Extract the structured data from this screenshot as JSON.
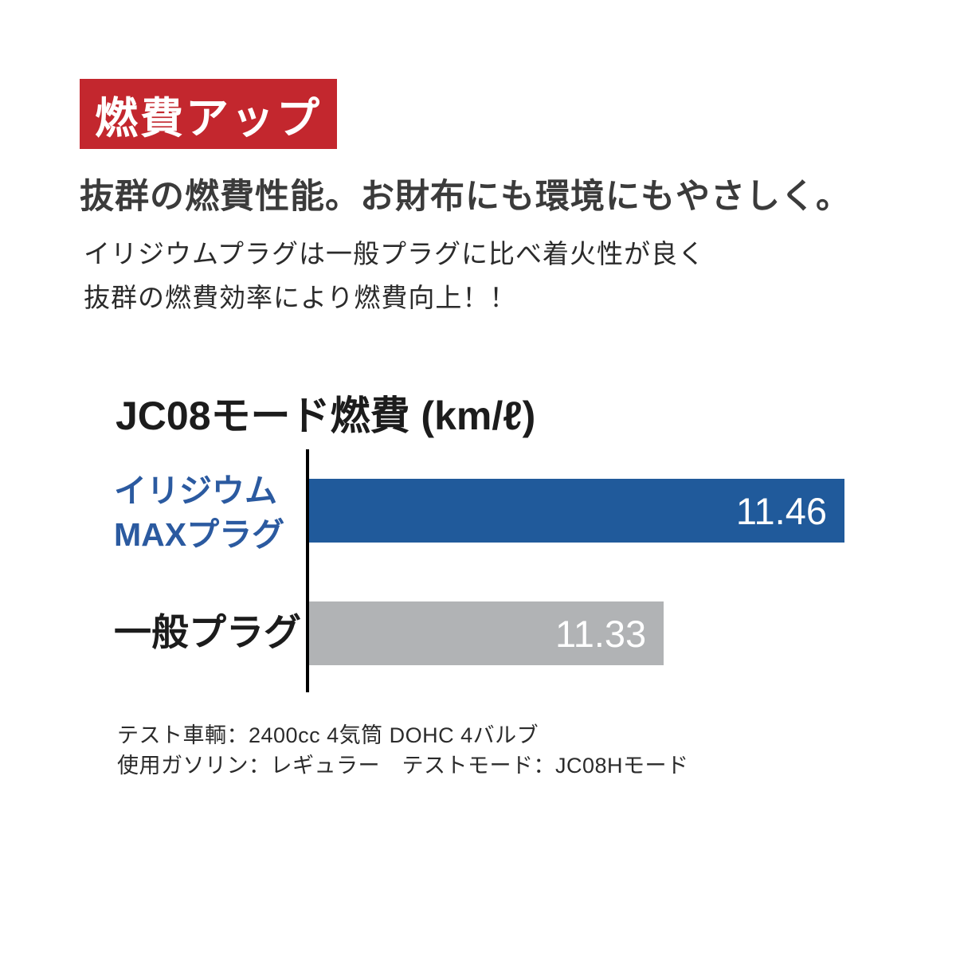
{
  "page": {
    "background": "#ffffff"
  },
  "badge": {
    "label": "燃費アップ",
    "bg_color": "#c3272e",
    "text_color": "#ffffff"
  },
  "headline": "抜群の燃費性能。お財布にも環境にもやさしく。",
  "body_lines": [
    "イリジウムプラグは一般プラグに比べ着火性が良く",
    "抜群の燃費効率により燃費向上！！"
  ],
  "chart_data": {
    "type": "bar",
    "orientation": "horizontal",
    "title": "JC08モード燃費 (km/ℓ)",
    "categories": [
      "イリジウムMAXプラグ",
      "一般プラグ"
    ],
    "values": [
      11.46,
      11.33
    ],
    "xlim": [
      11.08,
      11.48
    ],
    "grid": false,
    "legend": false,
    "axis_line_color": "#000000",
    "value_label_color": "#ffffff",
    "bars": [
      {
        "label_lines": [
          "イリジウム",
          "MAXプラグ"
        ],
        "label_color": "#2b5aa0",
        "value": "11.46",
        "color": "#205a9b",
        "length_pct": 96
      },
      {
        "label_lines": [
          "一般プラグ"
        ],
        "label_color": "#1c1c1c",
        "value": "11.33",
        "color": "#b1b3b5",
        "length_pct": 63.6
      }
    ]
  },
  "notes": [
    "テスト車輌：2400cc 4気筒 DOHC 4バルブ",
    "使用ガソリン：レギュラー　テストモード：JC08Hモード"
  ]
}
